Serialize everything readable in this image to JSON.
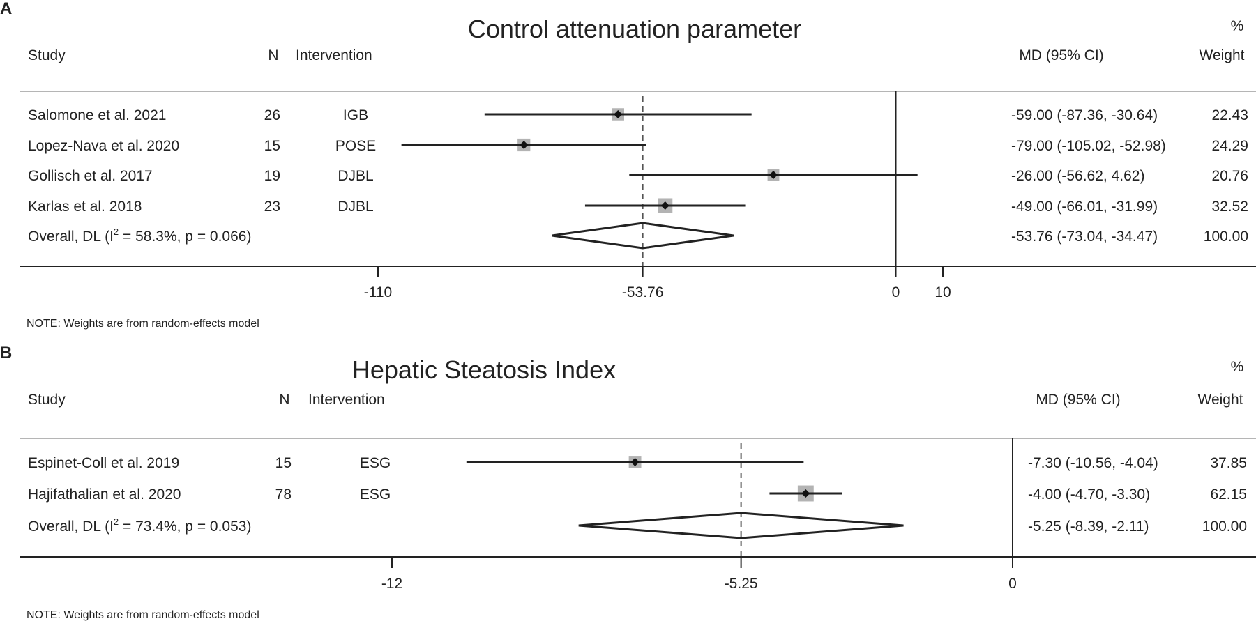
{
  "chart_data": [
    {
      "type": "forest",
      "panel_label": "A",
      "title": "Control attenuation parameter",
      "headers": {
        "study": "Study",
        "n": "N",
        "intervention": "Intervention",
        "md": "MD (95% CI)",
        "weight_top": "%",
        "weight": "Weight"
      },
      "studies": [
        {
          "study": "Salomone et al. 2021",
          "n": "26",
          "intervention": "IGB",
          "md": -59.0,
          "lo": -87.36,
          "hi": -30.64,
          "md_text": "-59.00 (-87.36, -30.64)",
          "weight": 22.43,
          "weight_text": "22.43"
        },
        {
          "study": "Lopez-Nava et al. 2020",
          "n": "15",
          "intervention": "POSE",
          "md": -79.0,
          "lo": -105.02,
          "hi": -52.98,
          "md_text": "-79.00 (-105.02, -52.98)",
          "weight": 24.29,
          "weight_text": "24.29"
        },
        {
          "study": "Gollisch et al. 2017",
          "n": "19",
          "intervention": "DJBL",
          "md": -26.0,
          "lo": -56.62,
          "hi": 4.62,
          "md_text": "-26.00 (-56.62, 4.62)",
          "weight": 20.76,
          "weight_text": "20.76"
        },
        {
          "study": "Karlas et al. 2018",
          "n": "23",
          "intervention": "DJBL",
          "md": -49.0,
          "lo": -66.01,
          "hi": -31.99,
          "md_text": "-49.00 (-66.01, -31.99)",
          "weight": 32.52,
          "weight_text": "32.52"
        }
      ],
      "overall": {
        "label_pre": "Overall, DL (I",
        "sup": "2",
        "label_post": " = 58.3%, p = 0.066)",
        "md": -53.76,
        "lo": -73.04,
        "hi": -34.47,
        "md_text": "-53.76 (-73.04, -34.47)",
        "weight_text": "100.00"
      },
      "xaxis": {
        "min": -110,
        "max": 10,
        "ticks": [
          -110,
          -53.76,
          0,
          10
        ],
        "tick_labels": [
          "-110",
          "-53.76",
          "0",
          "10"
        ]
      },
      "note": "NOTE: Weights are from random-effects model"
    },
    {
      "type": "forest",
      "panel_label": "B",
      "title": "Hepatic Steatosis Index",
      "headers": {
        "study": "Study",
        "n": "N",
        "intervention": "Intervention",
        "md": "MD (95% CI)",
        "weight_top": "%",
        "weight": "Weight"
      },
      "studies": [
        {
          "study": "Espinet-Coll et al. 2019",
          "n": "15",
          "intervention": "ESG",
          "md": -7.3,
          "lo": -10.56,
          "hi": -4.04,
          "md_text": "-7.30 (-10.56, -4.04)",
          "weight": 37.85,
          "weight_text": "37.85"
        },
        {
          "study": "Hajifathalian et al. 2020",
          "n": "78",
          "intervention": "ESG",
          "md": -4.0,
          "lo": -4.7,
          "hi": -3.3,
          "md_text": "-4.00 (-4.70, -3.30)",
          "weight": 62.15,
          "weight_text": "62.15"
        }
      ],
      "overall": {
        "label_pre": "Overall, DL (I",
        "sup": "2",
        "label_post": " = 73.4%, p = 0.053)",
        "md": -5.25,
        "lo": -8.39,
        "hi": -2.11,
        "md_text": "-5.25 (-8.39, -2.11)",
        "weight_text": "100.00"
      },
      "xaxis": {
        "min": -12,
        "max": 0,
        "ticks": [
          -12,
          -5.25,
          0
        ],
        "tick_labels": [
          "-12",
          "-5.25",
          "0"
        ]
      },
      "note": "NOTE: Weights are from random-effects model"
    }
  ]
}
